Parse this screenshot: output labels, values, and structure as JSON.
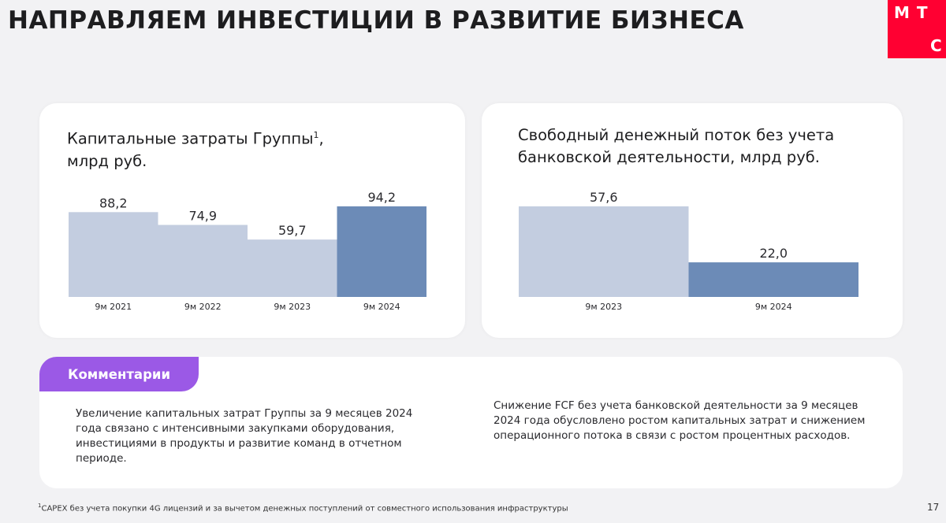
{
  "page": {
    "title": "НАПРАВЛЯЕМ ИНВЕСТИЦИИ В РАЗВИТИЕ БИЗНЕСА",
    "logo": {
      "line1": "М Т",
      "line2": "С"
    },
    "page_number": "17"
  },
  "colors": {
    "bar_light": "#c3cde0",
    "bar_dark": "#6c8bb7",
    "accent_tab": "#9b59e6",
    "logo_red": "#ff0032"
  },
  "chart_data": [
    {
      "type": "bar",
      "title": "Капитальные затраты Группы¹, млрд руб.",
      "categories": [
        "9м 2021",
        "9м 2022",
        "9м 2023",
        "9м 2024"
      ],
      "values": [
        88.2,
        74.9,
        59.7,
        94.2
      ],
      "value_labels": [
        "88,2",
        "74,9",
        "59,7",
        "94,2"
      ],
      "highlight_index": 3,
      "ylim": [
        0,
        94.2
      ],
      "grid": false
    },
    {
      "type": "bar",
      "title": "Свободный денежный поток без учета банковской деятельности, млрд руб.",
      "categories": [
        "9м 2023",
        "9м 2024"
      ],
      "values": [
        57.6,
        22.0
      ],
      "value_labels": [
        "57,6",
        "22,0"
      ],
      "highlight_index": 1,
      "ylim": [
        0,
        57.6
      ],
      "grid": false
    }
  ],
  "charts": {
    "capex_title": "Капитальные затраты Группы",
    "capex_title_sup": "1",
    "capex_title_suffix": ",",
    "capex_title_line2": "млрд руб.",
    "fcf_title_line1": "Свободный денежный поток без учета",
    "fcf_title_line2": "банковской деятельности, млрд руб."
  },
  "comments": {
    "tab_label": "Комментарии",
    "left": "Увеличение капитальных затрат Группы за 9 месяцев 2024 года связано с интенсивными закупками оборудования, инвестициями в продукты и развитие команд в отчетном периоде.",
    "right": "Снижение FCF без учета банковской деятельности за 9 месяцев 2024 года обусловлено ростом капитальных затрат и снижением операционного потока в связи с ростом процентных расходов."
  },
  "footnote": {
    "sup": "1",
    "text": "CAPEX без учета покупки 4G лицензий и за вычетом денежных поступлений от совместного использования инфраструктуры"
  }
}
